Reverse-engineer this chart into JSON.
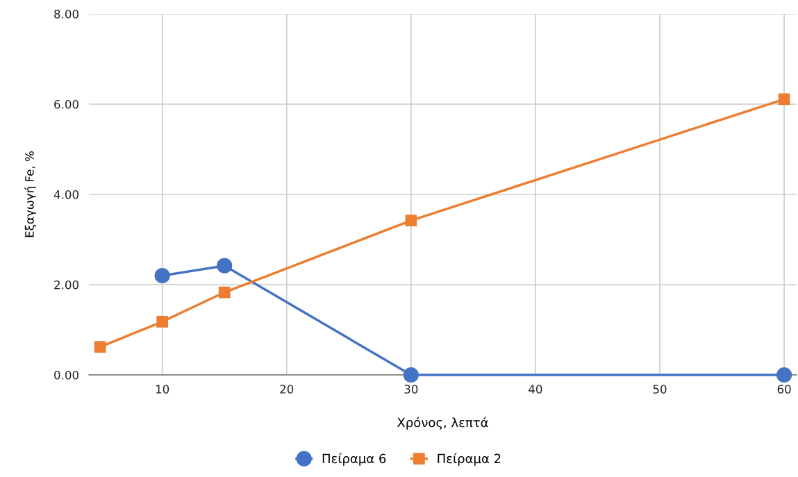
{
  "chart_data": {
    "type": "line",
    "xlabel": "Χρόνος, λεπτά",
    "ylabel": "Εξαγωγή Fe, %",
    "xlim": [
      4.1,
      61
    ],
    "xticks": [
      10,
      20,
      30,
      40,
      50,
      60
    ],
    "ylim": [
      0,
      8
    ],
    "yticks": [
      {
        "value": 0,
        "label": "0.00"
      },
      {
        "value": 2,
        "label": "2.00"
      },
      {
        "value": 4,
        "label": "4.00"
      },
      {
        "value": 6,
        "label": "6.00"
      },
      {
        "value": 8,
        "label": "8.00"
      }
    ],
    "grid": true,
    "legend": "bottom",
    "series": [
      {
        "name": "Πείραμα 6",
        "color": "#4472c4",
        "marker": "circle",
        "x": [
          10,
          15,
          30,
          60
        ],
        "values": [
          2.2,
          2.42,
          0,
          0
        ]
      },
      {
        "name": "Πείραμα 2",
        "color": "#ed7d31",
        "marker": "square",
        "x": [
          5,
          10,
          15,
          30,
          60
        ],
        "values": [
          0.62,
          1.18,
          1.83,
          3.42,
          6.11
        ]
      }
    ]
  }
}
